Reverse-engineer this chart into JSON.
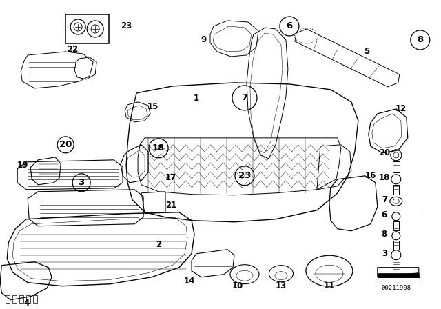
{
  "bg_color": "#ffffff",
  "fig_width": 6.4,
  "fig_height": 4.48,
  "dpi": 100,
  "watermark": "00211908",
  "label_fontsize": 8.5,
  "circle_label_fontsize": 9.5
}
